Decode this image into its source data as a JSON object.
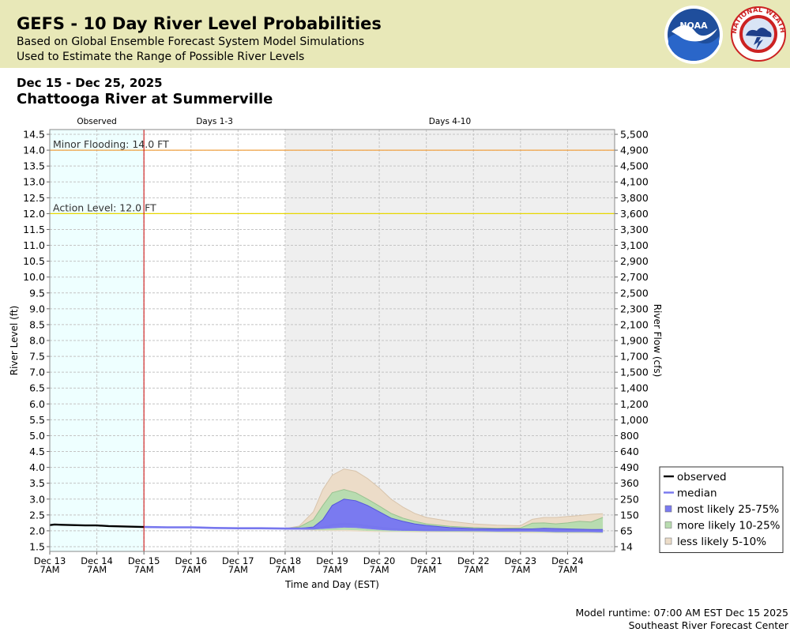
{
  "header": {
    "title": "GEFS - 10 Day River Level Probabilities",
    "subtitle1": "Based on Global Ensemble Forecast System Model Simulations",
    "subtitle2": "Used to Estimate the Range of Possible River Levels",
    "logo_noaa_text": "NOAA",
    "logo_nws_text": "NATIONAL WEATHER SERVICE"
  },
  "date_range": "Dec 15 - Dec 25, 2025",
  "station": "Chattooga River at Summerville",
  "footer": {
    "runtime": "Model runtime: 07:00 AM EST Dec 15 2025",
    "center": "Southeast River Forecast Center"
  },
  "colors": {
    "observed_bg": "#eeffff",
    "days410_bg": "#efefef",
    "minor_line": "#f0a040",
    "action_line": "#e8d800",
    "now_line": "#cc0000",
    "observed": "#000000",
    "median": "#7777ee",
    "band25_75": "#7a7af0",
    "band10_25": "#b8dcb0",
    "band5_10": "#ecdcc8"
  },
  "chart_data": {
    "type": "area",
    "section_labels": [
      "Observed",
      "Days 1-3",
      "Days 4-10"
    ],
    "xlabel": "Time and Day (EST)",
    "ylabel": "River Level (ft)",
    "y2label": "River Flow (cfs)",
    "ylim": [
      1.35,
      14.65
    ],
    "yticks": [
      "14.5",
      "14.0",
      "13.5",
      "13.0",
      "12.5",
      "12.0",
      "11.5",
      "11.0",
      "10.5",
      "10.0",
      "9.5",
      "9.0",
      "8.5",
      "8.0",
      "7.5",
      "7.0",
      "6.5",
      "6.0",
      "5.5",
      "5.0",
      "4.5",
      "4.0",
      "3.5",
      "3.0",
      "2.5",
      "2.0",
      "1.5"
    ],
    "flow_ticks": [
      "5,500",
      "4,900",
      "4,500",
      "4,100",
      "3,800",
      "3,600",
      "3,300",
      "3,100",
      "2,900",
      "2,700",
      "2,500",
      "2,300",
      "2,100",
      "1,900",
      "1,700",
      "1,500",
      "1,400",
      "1,200",
      "1,000",
      "800",
      "640",
      "490",
      "360",
      "250",
      "150",
      "65",
      "14"
    ],
    "x_unit": "days since Dec 13 7AM",
    "xlim": [
      0,
      12
    ],
    "xticks": [
      {
        "day": "Dec 13",
        "time": "7AM"
      },
      {
        "day": "Dec 14",
        "time": "7AM"
      },
      {
        "day": "Dec 15",
        "time": "7AM"
      },
      {
        "day": "Dec 16",
        "time": "7AM"
      },
      {
        "day": "Dec 17",
        "time": "7AM"
      },
      {
        "day": "Dec 18",
        "time": "7AM"
      },
      {
        "day": "Dec 19",
        "time": "7AM"
      },
      {
        "day": "Dec 20",
        "time": "7AM"
      },
      {
        "day": "Dec 21",
        "time": "7AM"
      },
      {
        "day": "Dec 22",
        "time": "7AM"
      },
      {
        "day": "Dec 23",
        "time": "7AM"
      },
      {
        "day": "Dec 24",
        "time": "7AM"
      }
    ],
    "observed_end": 2,
    "days13_end": 5,
    "thresholds": [
      {
        "name": "Minor Flooding",
        "label": "Minor Flooding: 14.0 FT",
        "value": 14.0
      },
      {
        "name": "Action Level",
        "label": "Action Level: 12.0 FT",
        "value": 12.0
      }
    ],
    "legend": [
      {
        "key": "observed",
        "label": "observed"
      },
      {
        "key": "median",
        "label": "median"
      },
      {
        "key": "band25_75",
        "label": "most likely 25-75%"
      },
      {
        "key": "band10_25",
        "label": "more likely 10-25%"
      },
      {
        "key": "band5_10",
        "label": "less likely 5-10%"
      }
    ],
    "observed": {
      "x": [
        0,
        0.1,
        0.25,
        0.5,
        0.75,
        1,
        1.25,
        1.5,
        1.75,
        2
      ],
      "y": [
        2.18,
        2.2,
        2.19,
        2.18,
        2.17,
        2.17,
        2.15,
        2.14,
        2.13,
        2.12
      ]
    },
    "forecast_x": [
      2,
      2.5,
      3,
      3.5,
      4,
      4.5,
      5,
      5.3,
      5.6,
      5.8,
      6,
      6.25,
      6.5,
      6.75,
      7,
      7.25,
      7.5,
      7.75,
      8,
      8.5,
      9,
      9.5,
      10,
      10.25,
      10.5,
      10.75,
      11,
      11.25,
      11.5,
      11.75
    ],
    "median": [
      2.12,
      2.11,
      2.11,
      2.09,
      2.08,
      2.08,
      2.07,
      2.07,
      2.07,
      2.1,
      2.18,
      2.22,
      2.2,
      2.15,
      2.1,
      2.06,
      2.04,
      2.03,
      2.02,
      2.02,
      2.02,
      2.01,
      2.01,
      2.01,
      2.01,
      2.0,
      2.0,
      2.0,
      1.99,
      1.99
    ],
    "p75": [
      2.12,
      2.11,
      2.11,
      2.09,
      2.08,
      2.08,
      2.07,
      2.08,
      2.12,
      2.35,
      2.8,
      3.0,
      2.95,
      2.8,
      2.6,
      2.4,
      2.3,
      2.22,
      2.17,
      2.1,
      2.07,
      2.06,
      2.06,
      2.06,
      2.08,
      2.07,
      2.06,
      2.05,
      2.04,
      2.04
    ],
    "p25": [
      2.12,
      2.11,
      2.11,
      2.09,
      2.08,
      2.08,
      2.07,
      2.06,
      2.05,
      2.06,
      2.08,
      2.1,
      2.09,
      2.06,
      2.03,
      2.01,
      2.0,
      2.0,
      2.0,
      2.0,
      1.99,
      1.98,
      1.98,
      1.98,
      1.97,
      1.96,
      1.96,
      1.96,
      1.96,
      1.95
    ],
    "p90": [
      2.12,
      2.11,
      2.11,
      2.09,
      2.08,
      2.08,
      2.07,
      2.12,
      2.35,
      2.8,
      3.2,
      3.3,
      3.2,
      3.0,
      2.78,
      2.55,
      2.4,
      2.3,
      2.22,
      2.14,
      2.1,
      2.08,
      2.09,
      2.24,
      2.25,
      2.22,
      2.25,
      2.3,
      2.28,
      2.42
    ],
    "p10": [
      2.12,
      2.11,
      2.11,
      2.09,
      2.08,
      2.08,
      2.07,
      2.05,
      2.03,
      2.02,
      2.02,
      2.03,
      2.02,
      2.0,
      1.99,
      1.98,
      1.98,
      1.98,
      1.98,
      1.97,
      1.97,
      1.96,
      1.96,
      1.96,
      1.95,
      1.94,
      1.94,
      1.94,
      1.94,
      1.93
    ],
    "p95": [
      2.12,
      2.11,
      2.11,
      2.09,
      2.08,
      2.08,
      2.07,
      2.15,
      2.6,
      3.3,
      3.75,
      3.95,
      3.88,
      3.65,
      3.35,
      3.0,
      2.75,
      2.55,
      2.42,
      2.3,
      2.22,
      2.18,
      2.16,
      2.36,
      2.42,
      2.42,
      2.45,
      2.48,
      2.52,
      2.54
    ],
    "p5": [
      2.12,
      2.11,
      2.11,
      2.09,
      2.08,
      2.08,
      2.07,
      2.04,
      2.01,
      2.0,
      1.99,
      1.99,
      1.98,
      1.97,
      1.96,
      1.96,
      1.96,
      1.95,
      1.95,
      1.95,
      1.94,
      1.94,
      1.93,
      1.93,
      1.93,
      1.92,
      1.92,
      1.92,
      1.92,
      1.92
    ]
  }
}
